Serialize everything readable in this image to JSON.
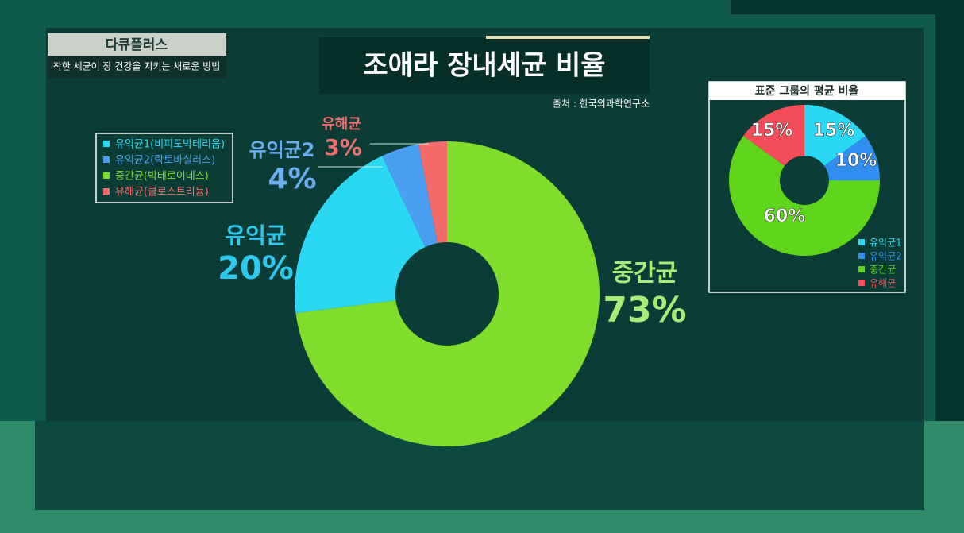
{
  "header": {
    "program": "다큐플러스",
    "subtitle": "착한 세균이 장 건강을 지키는 새로운 방법"
  },
  "chart_data": [
    {
      "type": "donut",
      "title": "조애라 장내세균 비율",
      "source": "출처 : 한국의과학연구소",
      "categories": [
        "중간균",
        "유익균",
        "유익균2",
        "유해균"
      ],
      "values": [
        73,
        20,
        4,
        3
      ],
      "value_labels": [
        "73%",
        "20%",
        "4%",
        "3%"
      ],
      "colors": [
        "#7fdd2c",
        "#2ad8f4",
        "#4a9ff0",
        "#f36b6b"
      ],
      "legend": [
        {
          "name": "유익균1(비피도박테리움)",
          "color": "#2ad8f4"
        },
        {
          "name": "유익균2(락토바실러스)",
          "color": "#4a9ff0"
        },
        {
          "name": "중간균(박테로이데스)",
          "color": "#7fdd2c"
        },
        {
          "name": "유해균(클로스트리듐)",
          "color": "#f36b6b"
        }
      ]
    },
    {
      "type": "donut",
      "title": "표준 그룹의 평균 비율",
      "categories": [
        "유익균1",
        "유익균2",
        "중간균",
        "유해균"
      ],
      "values": [
        15,
        10,
        60,
        15
      ],
      "value_labels": [
        "15%",
        "10%",
        "60%",
        "15%"
      ],
      "colors": [
        "#2ad8f4",
        "#2f8ef0",
        "#5ed41a",
        "#f34d5a"
      ]
    }
  ]
}
